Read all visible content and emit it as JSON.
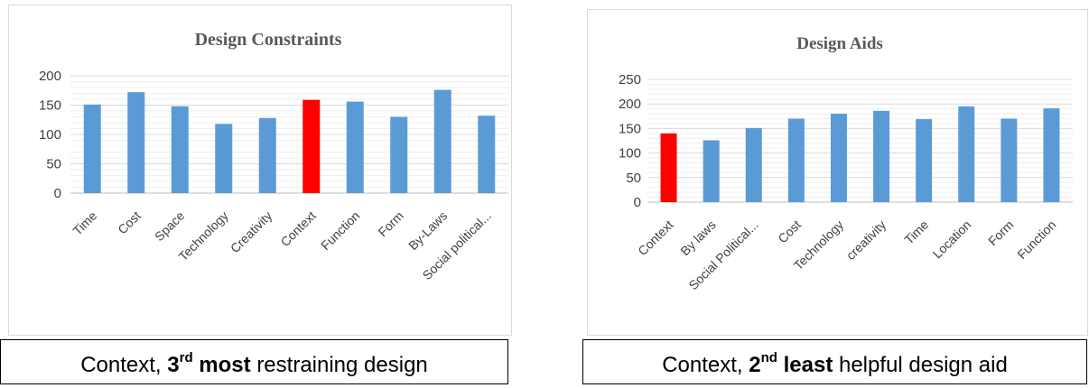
{
  "chart_data": [
    {
      "type": "bar",
      "title": "Design Constraints",
      "categories": [
        "Time",
        "Cost",
        "Space",
        "Technology",
        "Creativity",
        "Context",
        "Function",
        "Form",
        "By-Laws",
        "Social political..."
      ],
      "values": [
        151,
        172,
        148,
        118,
        128,
        159,
        156,
        130,
        176,
        132
      ],
      "highlight_index": 5,
      "ylim": [
        0,
        200
      ],
      "yticks": [
        0,
        50,
        100,
        150,
        200
      ],
      "grid": true,
      "colors": {
        "bar": "#5b9bd5",
        "highlight": "#ff0000",
        "title": "#595959",
        "axis_text": "#404040",
        "grid": "#d9d9d9"
      }
    },
    {
      "type": "bar",
      "title": "Design Aids",
      "categories": [
        "Context",
        "By laws",
        "Social Political...",
        "Cost",
        "Technology",
        "creativity",
        "Time",
        "Location",
        "Form",
        "Function"
      ],
      "values": [
        140,
        126,
        151,
        170,
        180,
        186,
        169,
        195,
        170,
        191
      ],
      "highlight_index": 0,
      "ylim": [
        0,
        250
      ],
      "yticks": [
        0,
        50,
        100,
        150,
        200,
        250
      ],
      "grid": true,
      "colors": {
        "bar": "#5b9bd5",
        "highlight": "#ff0000",
        "title": "#595959",
        "axis_text": "#404040",
        "grid": "#d9d9d9"
      }
    }
  ],
  "captions": [
    {
      "prefix": "Context, ",
      "ordinal": "3",
      "suffix_sup": "rd",
      "bold_word": "most",
      "rest": "restraining design"
    },
    {
      "prefix": "Context, ",
      "ordinal": "2",
      "suffix_sup": "nd",
      "bold_word": "least",
      "rest": "helpful design aid"
    }
  ]
}
